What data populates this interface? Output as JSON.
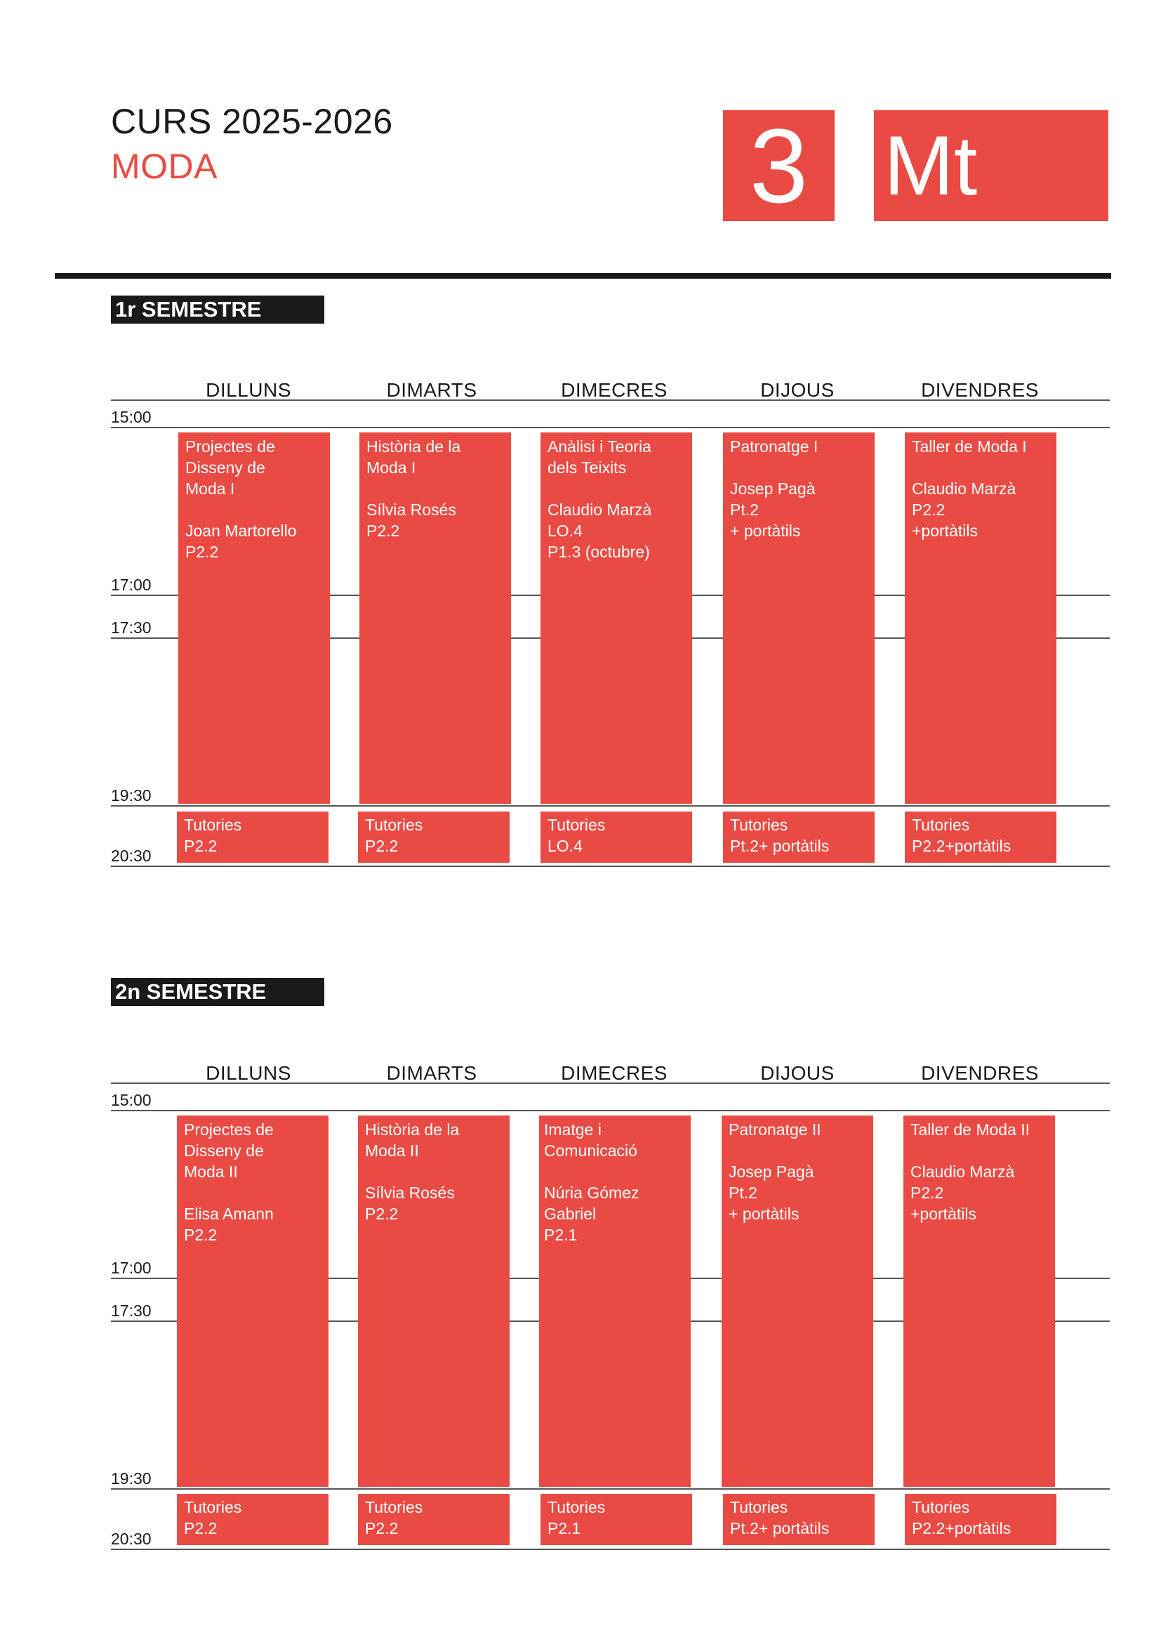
{
  "header": {
    "title": "CURS 2025-2026",
    "subtitle": "MODA",
    "course_number": "3",
    "group_code": "Mt",
    "accent_color": "#e94b44"
  },
  "days": [
    "DILLUNS",
    "DIMARTS",
    "DIMECRES",
    "DIJOUS",
    "DIVENDRES"
  ],
  "times": [
    "15:00",
    "17:00",
    "17:30",
    "19:30",
    "20:30"
  ],
  "semester1": {
    "label": "1r SEMESTRE",
    "classes": [
      "Projectes de\nDisseny de\nModa I\n\nJoan Martorello\nP2.2",
      "Història de la\nModa I\n\nSílvia Rosés\nP2.2",
      "Anàlisi i Teoria\ndels Teixits\n\nClaudio Marzà\nLO.4\nP1.3 (octubre)",
      "Patronatge I\n\nJosep Pagà\nPt.2\n+ portàtils",
      "Taller de Moda I\n\nClaudio Marzà\nP2.2\n+portàtils"
    ],
    "tutorials": [
      "Tutories\nP2.2",
      "Tutories\nP2.2",
      "Tutories\nLO.4",
      "Tutories\nPt.2+ portàtils",
      "Tutories\nP2.2+portàtils"
    ]
  },
  "semester2": {
    "label": "2n SEMESTRE",
    "classes": [
      "Projectes de\nDisseny de\nModa II\n\nElisa Amann\nP2.2",
      "Història de la\nModa II\n\nSílvia Rosés\nP2.2",
      "Imatge i\nComunicació\n\nNúria Gómez\nGabriel\nP2.1",
      "Patronatge II\n\nJosep Pagà\nPt.2\n+ portàtils",
      "Taller de Moda II\n\nClaudio Marzà\nP2.2\n+portàtils"
    ],
    "tutorials": [
      "Tutories\nP2.2",
      "Tutories\nP2.2",
      "Tutories\nP2.1",
      "Tutories\nPt.2+ portàtils",
      "Tutories\nP2.2+portàtils"
    ]
  }
}
